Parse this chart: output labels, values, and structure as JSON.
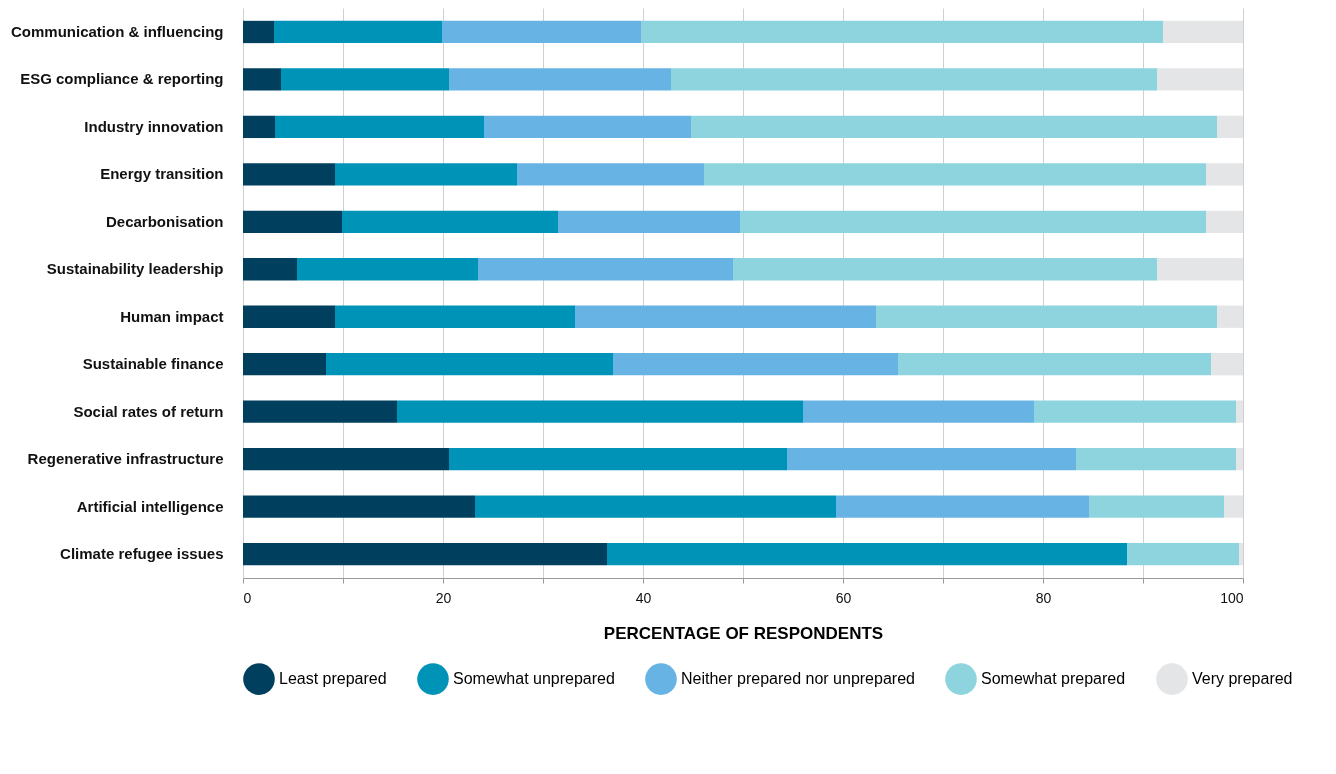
{
  "chart_data": {
    "type": "bar",
    "orientation": "horizontal",
    "stacked": true,
    "xlabel": "PERCENTAGE OF RESPONDENTS",
    "categories": [
      "Communication & influencing",
      "ESG compliance & reporting",
      "Industry innovation",
      "Energy transition",
      "Decarbonisation",
      "Sustainability leadership",
      "Human impact",
      "Sustainable finance",
      "Social rates of return",
      "Regenerative infrastructure",
      "Artificial intelligence",
      "Climate refugee issues"
    ],
    "series": [
      {
        "name": "Least prepared",
        "color": "#00405e",
        "values": [
          3.1,
          3.8,
          3.2,
          9.2,
          9.9,
          5.4,
          9.2,
          8.3,
          15.4,
          20.6,
          23.2,
          36.4
        ]
      },
      {
        "name": "Somewhat unprepared",
        "color": "#0093b8",
        "values": [
          16.8,
          16.8,
          20.9,
          18.2,
          21.6,
          18.1,
          24.0,
          28.7,
          40.6,
          33.8,
          36.1,
          52.0
        ]
      },
      {
        "name": "Neither prepared nor unprepared",
        "color": "#67b3e3",
        "values": [
          19.9,
          22.2,
          20.7,
          18.7,
          18.2,
          25.5,
          30.1,
          28.5,
          23.1,
          28.9,
          25.3,
          0
        ]
      },
      {
        "name": "Somewhat prepared",
        "color": "#8dd4de",
        "values": [
          52.2,
          48.6,
          52.6,
          50.2,
          46.6,
          42.4,
          34.1,
          31.3,
          20.2,
          16.0,
          13.5,
          11.2
        ]
      },
      {
        "name": "Very prepared",
        "color": "#e4e5e7",
        "values": [
          8.0,
          8.6,
          2.6,
          3.7,
          3.7,
          8.6,
          2.6,
          3.2,
          0.7,
          0.7,
          1.9,
          0.4
        ]
      }
    ],
    "xlim": [
      0,
      100
    ],
    "xticks": [
      0,
      {
        "value": 10,
        "label": null
      },
      20,
      {
        "value": 30,
        "label": null
      },
      40,
      {
        "value": 50,
        "label": null
      },
      60,
      {
        "value": 70,
        "label": null
      },
      80,
      {
        "value": 90,
        "label": null
      },
      100
    ],
    "grid": "x",
    "legend": "bottom"
  }
}
